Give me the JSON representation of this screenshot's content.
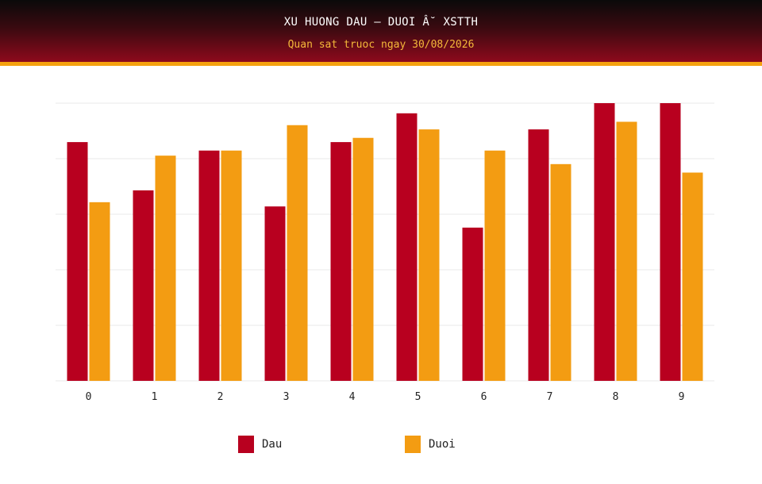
{
  "header": {
    "title": "XU HUONG DAU – DUOI Â˘ XSTTH",
    "subtitle": "Quan sat truoc ngay 30/08/2026"
  },
  "colors": {
    "dau": "#b8001f",
    "duoi": "#f39c12",
    "header_dark": "#0a0a0a",
    "header_red": "#8e0a1c",
    "header_stripe": "#f5a20f",
    "grid": "#e8e8e8"
  },
  "legend": {
    "dau_label": "Dau",
    "duoi_label": "Duoi"
  },
  "chart_data": {
    "type": "bar",
    "categories": [
      "0",
      "1",
      "2",
      "3",
      "4",
      "5",
      "6",
      "7",
      "8",
      "9"
    ],
    "series": [
      {
        "name": "Dau",
        "values": [
          28.2,
          22.5,
          27.2,
          20.6,
          28.2,
          31.6,
          18.1,
          29.7,
          32.8,
          32.8
        ]
      },
      {
        "name": "Duoi",
        "values": [
          21.1,
          26.6,
          27.2,
          30.2,
          28.7,
          29.7,
          27.2,
          25.6,
          30.6,
          24.6
        ]
      }
    ],
    "ylim": [
      0,
      32.8
    ],
    "grid": true,
    "legend_position": "bottom"
  }
}
